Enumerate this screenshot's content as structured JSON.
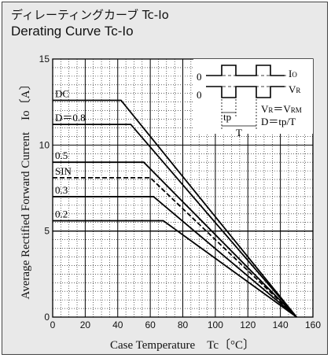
{
  "title_jp": "ディレーティングカーブ Tc-Io",
  "title_en": "Derating Curve Tc-Io",
  "chart_data": {
    "type": "line",
    "xlabel": "Case Temperature　Tc〔°C〕",
    "ylabel": "Average Rectified Forward Current　Io〔A〕",
    "xlim": [
      0,
      160
    ],
    "ylim": [
      0,
      15
    ],
    "x_ticks": [
      "0",
      "20",
      "40",
      "60",
      "80",
      "100",
      "120",
      "140",
      "160"
    ],
    "y_ticks": [
      "0",
      "5",
      "10",
      "15"
    ],
    "grid": "dotted minor, solid major",
    "series": [
      {
        "name": "DC",
        "style": "solid",
        "x": [
          0,
          42,
          150
        ],
        "y": [
          12.6,
          12.6,
          0
        ]
      },
      {
        "name": "D＝0.8",
        "style": "solid",
        "x": [
          0,
          48,
          150
        ],
        "y": [
          11.2,
          11.2,
          0
        ]
      },
      {
        "name": "0.5",
        "style": "solid",
        "x": [
          0,
          56,
          150
        ],
        "y": [
          9.0,
          9.0,
          0
        ]
      },
      {
        "name": "SIN",
        "style": "dashed",
        "x": [
          0,
          60,
          150
        ],
        "y": [
          8.1,
          8.1,
          0
        ]
      },
      {
        "name": "0.3",
        "style": "solid",
        "x": [
          0,
          62,
          150
        ],
        "y": [
          7.0,
          7.0,
          0
        ]
      },
      {
        "name": "0.2",
        "style": "solid",
        "x": [
          0,
          68,
          150
        ],
        "y": [
          5.6,
          5.6,
          0
        ]
      }
    ],
    "reference_line": {
      "y": 5
    },
    "inset": {
      "io_label": "I",
      "io_sub": "O",
      "vr_label": "V",
      "vr_sub": "R",
      "zero1": "0",
      "zero2": "0",
      "tp": "tp",
      "T": "T",
      "eq1_a": "V",
      "eq1_sub1": "R",
      "eq1_mid": "＝V",
      "eq1_sub2": "RM",
      "eq2": "D＝tp/T"
    }
  }
}
